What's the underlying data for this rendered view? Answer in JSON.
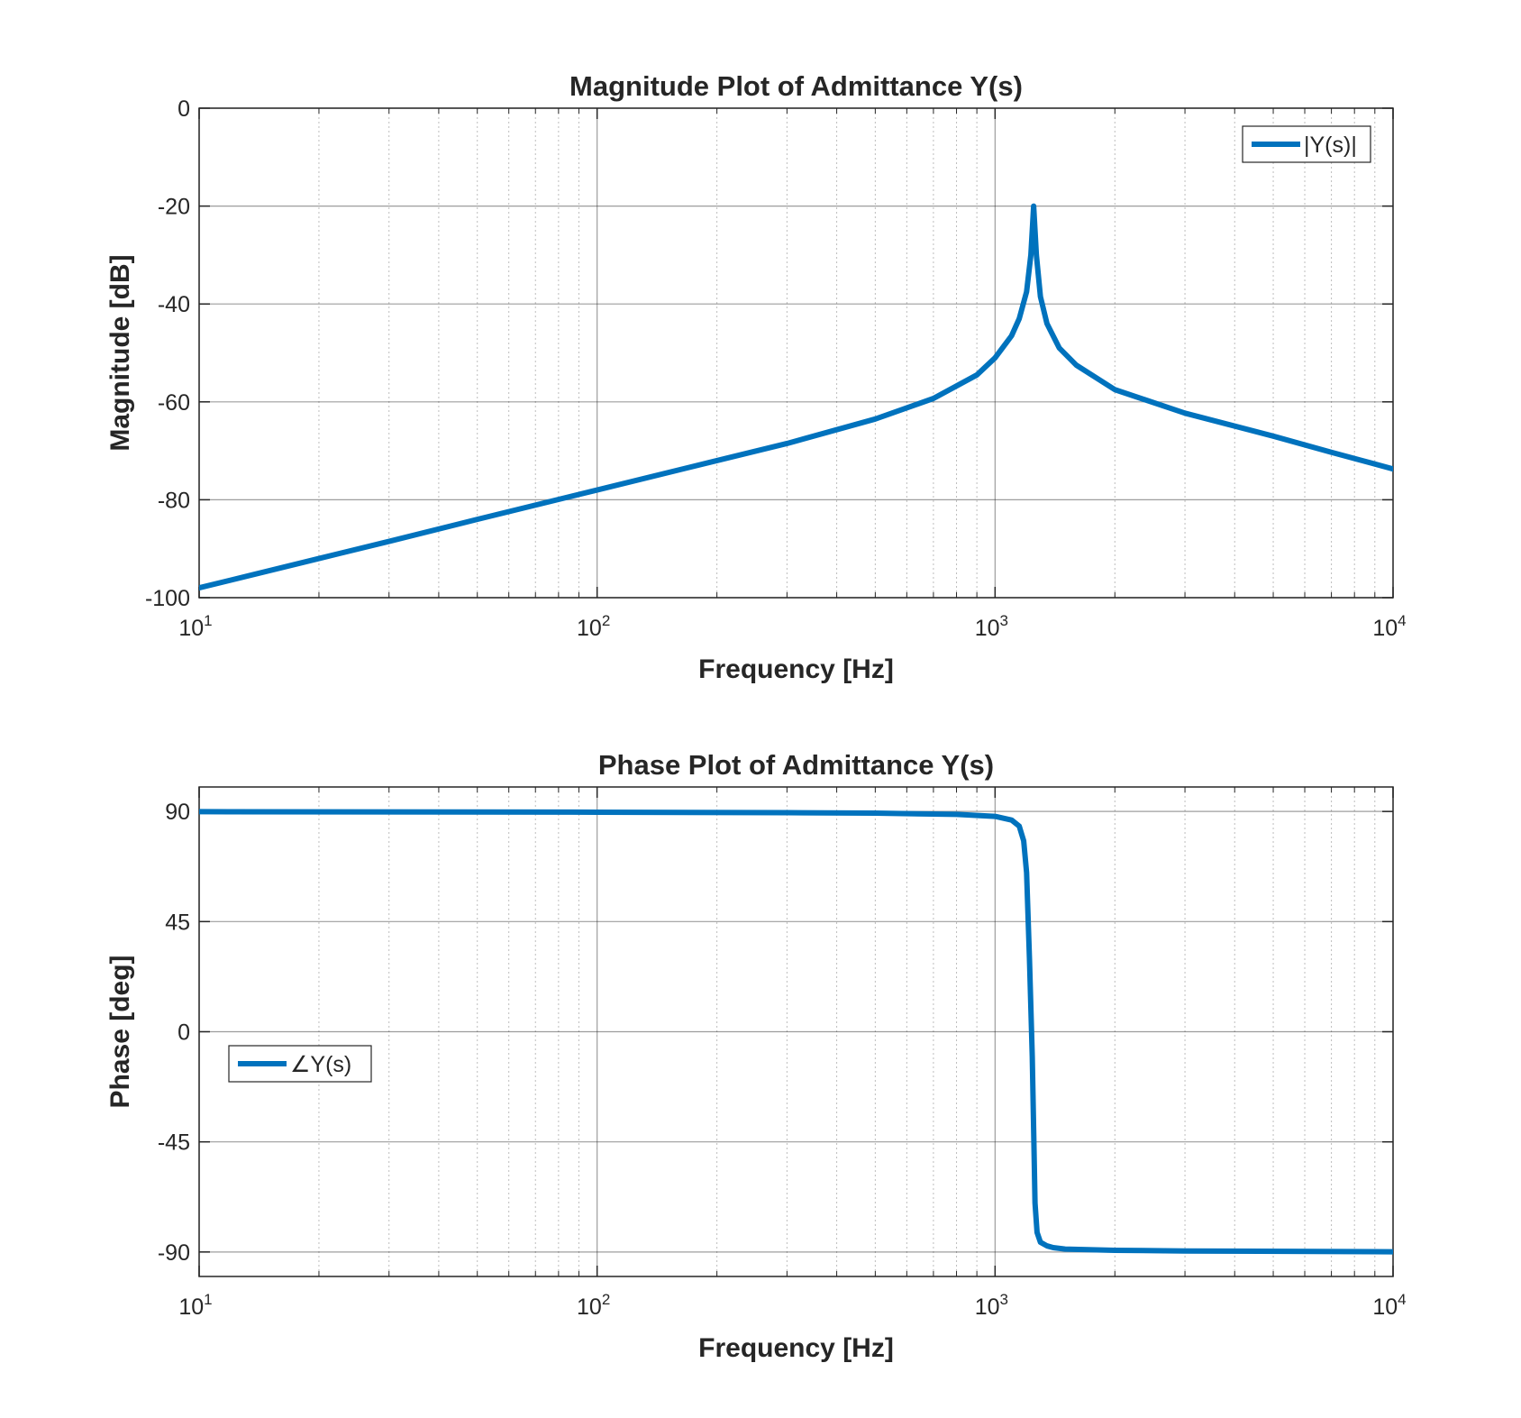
{
  "colors": {
    "series": "#0072BD",
    "grid": "#262626",
    "axis": "#262626",
    "background": "#FFFFFF"
  },
  "chart_data": [
    {
      "type": "line",
      "title": "Magnitude Plot of Admittance Y(s)",
      "xlabel": "Frequency [Hz]",
      "ylabel": "Magnitude [dB]",
      "xscale": "log",
      "xlim": [
        10,
        10000
      ],
      "ylim": [
        -100,
        0
      ],
      "xticks": [
        10,
        100,
        1000,
        10000
      ],
      "xtick_labels": [
        {
          "base": "10",
          "exp": "1"
        },
        {
          "base": "10",
          "exp": "2"
        },
        {
          "base": "10",
          "exp": "3"
        },
        {
          "base": "10",
          "exp": "4"
        }
      ],
      "yticks": [
        0,
        -20,
        -40,
        -60,
        -80,
        -100
      ],
      "ytick_labels": [
        "0",
        "-20",
        "-40",
        "-60",
        "-80",
        "-100"
      ],
      "grid": true,
      "legend": {
        "entries": [
          "|Y(s)|"
        ],
        "placement": "top-right"
      },
      "series": [
        {
          "name": "|Y(s)|",
          "x": [
            10,
            20,
            30,
            50,
            100,
            200,
            300,
            500,
            700,
            900,
            1000,
            1100,
            1150,
            1200,
            1230,
            1250,
            1270,
            1300,
            1350,
            1450,
            1600,
            2000,
            3000,
            5000,
            7000,
            10000
          ],
          "y": [
            -98,
            -92,
            -88.5,
            -84,
            -78,
            -72,
            -68.5,
            -63.5,
            -59.3,
            -54.5,
            -51,
            -46.5,
            -43,
            -37.5,
            -30,
            -20,
            -30,
            -38.5,
            -44,
            -49,
            -52.5,
            -57.5,
            -62.3,
            -67,
            -70.3,
            -73.7
          ]
        }
      ]
    },
    {
      "type": "line",
      "title": "Phase Plot of  Admittance Y(s)",
      "xlabel": "Frequency [Hz]",
      "ylabel": "Phase [deg]",
      "xscale": "log",
      "xlim": [
        10,
        10000
      ],
      "ylim": [
        -100,
        100
      ],
      "xticks": [
        10,
        100,
        1000,
        10000
      ],
      "xtick_labels": [
        {
          "base": "10",
          "exp": "1"
        },
        {
          "base": "10",
          "exp": "2"
        },
        {
          "base": "10",
          "exp": "3"
        },
        {
          "base": "10",
          "exp": "4"
        }
      ],
      "yticks": [
        90,
        45,
        0,
        -45,
        -90
      ],
      "ytick_labels": [
        "90",
        "45",
        "0",
        "-45",
        "-90"
      ],
      "grid": true,
      "legend": {
        "entries": [
          "∠Y(s)"
        ],
        "placement": "middle-left"
      },
      "series": [
        {
          "name": "∠Y(s)",
          "x": [
            10,
            100,
            300,
            500,
            800,
            1000,
            1100,
            1150,
            1180,
            1200,
            1220,
            1240,
            1250,
            1260,
            1275,
            1300,
            1350,
            1400,
            1500,
            2000,
            3000,
            10000
          ],
          "y": [
            89.9,
            89.7,
            89.5,
            89.3,
            88.8,
            88,
            86.5,
            84,
            78,
            65,
            30,
            -10,
            -40,
            -70,
            -82,
            -86,
            -87.5,
            -88.2,
            -88.8,
            -89.3,
            -89.6,
            -89.9
          ]
        }
      ]
    }
  ]
}
